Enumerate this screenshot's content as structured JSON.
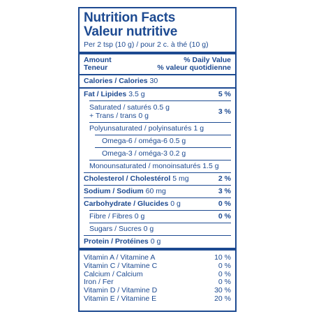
{
  "title_en": "Nutrition Facts",
  "title_fr": "Valeur nutritive",
  "serving": "Per 2 tsp (10 g) / pour 2 c. à thé (10 g)",
  "header": {
    "amount_en": "Amount",
    "amount_fr": "Teneur",
    "dv_en": "% Daily Value",
    "dv_fr": "% valeur quotidienne"
  },
  "calories": {
    "label": "Calories / Calories",
    "value": "30"
  },
  "fat": {
    "label": "Fat / Lipides",
    "value": "3.5 g",
    "pct": "5 %"
  },
  "saturated": {
    "label": "Saturated / saturés",
    "value": "0.5 g"
  },
  "trans": {
    "label": "+ Trans / trans",
    "value": "0 g"
  },
  "sat_trans_pct": "3 %",
  "polyunsaturated": {
    "label": "Polyunsaturated / polyinsaturés",
    "value": "1 g"
  },
  "omega6": {
    "label": "Omega-6 / oméga-6",
    "value": "0.5 g"
  },
  "omega3": {
    "label": "Omega-3 / oméga-3",
    "value": "0.2 g"
  },
  "monounsaturated": {
    "label": "Monounsaturated / monoinsaturés",
    "value": "1.5 g"
  },
  "cholesterol": {
    "label": "Cholesterol / Cholestérol",
    "value": "5 mg",
    "pct": "2 %"
  },
  "sodium": {
    "label": "Sodium / Sodium",
    "value": "60 mg",
    "pct": "3 %"
  },
  "carbohydrate": {
    "label": "Carbohydrate / Glucides",
    "value": "0 g",
    "pct": "0 %"
  },
  "fibre": {
    "label": "Fibre / Fibres",
    "value": "0 g",
    "pct": "0 %"
  },
  "sugars": {
    "label": "Sugars / Sucres",
    "value": "0 g"
  },
  "protein": {
    "label": "Protein / Protéines",
    "value": "0 g"
  },
  "vitamins": [
    {
      "label": "Vitamin A / Vitamine A",
      "pct": "10 %"
    },
    {
      "label": "Vitamin C / Vitamine C",
      "pct": "0 %"
    },
    {
      "label": "Calcium / Calcium",
      "pct": "0 %"
    },
    {
      "label": "Iron / Fer",
      "pct": "0 %"
    },
    {
      "label": "Vitamin D / Vitamine D",
      "pct": "30 %"
    },
    {
      "label": "Vitamin E / Vitamine E",
      "pct": "20 %"
    }
  ],
  "colors": {
    "ink": "#1d4a91",
    "background": "#ffffff"
  }
}
